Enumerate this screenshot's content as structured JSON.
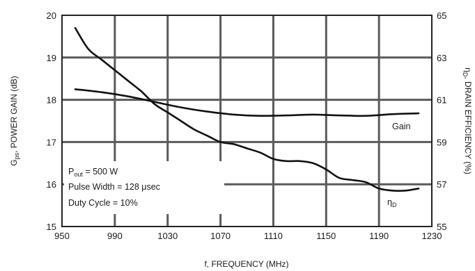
{
  "chart_data": {
    "type": "line",
    "xlabel": "f, FREQUENCY (MHz)",
    "ylabel_left": "Gps, POWER GAIN (dB)",
    "ylabel_left_main": "G",
    "ylabel_left_sub": "ps",
    "ylabel_left_rest": ", POWER GAIN (dB)",
    "ylabel_right": "ηD, DRAIN EFFICIENCY (%)",
    "ylabel_right_main": "η",
    "ylabel_right_sub": "D",
    "ylabel_right_rest": ", DRAIN EFFICIENCY (%)",
    "xlim": [
      950,
      1230
    ],
    "ylim_left": [
      15,
      20
    ],
    "ylim_right": [
      55,
      65
    ],
    "x_ticks": [
      "950",
      "990",
      "1030",
      "1070",
      "1110",
      "1150",
      "1190",
      "1230"
    ],
    "y_ticks_left": [
      "15",
      "16",
      "17",
      "18",
      "19",
      "20"
    ],
    "y_ticks_right": [
      "55",
      "57",
      "59",
      "61",
      "63",
      "65"
    ],
    "grid": true,
    "annotations": {
      "line1_main": "P",
      "line1_sub": "out",
      "line1_rest": " = 500 W",
      "line2": "Pulse Width = 128 μsec",
      "line3": "Duty Cycle = 10%"
    },
    "series": [
      {
        "name": "Gain",
        "axis": "left",
        "x": [
          960,
          980,
          1000,
          1020,
          1040,
          1060,
          1080,
          1100,
          1120,
          1140,
          1160,
          1180,
          1200,
          1220
        ],
        "values": [
          18.25,
          18.18,
          18.08,
          17.95,
          17.82,
          17.72,
          17.65,
          17.62,
          17.63,
          17.65,
          17.63,
          17.62,
          17.66,
          17.68
        ]
      },
      {
        "name": "ηD",
        "label_main": "η",
        "label_sub": "D",
        "axis": "right",
        "x": [
          960,
          970,
          980,
          990,
          1000,
          1010,
          1020,
          1030,
          1040,
          1050,
          1060,
          1070,
          1080,
          1090,
          1100,
          1110,
          1120,
          1130,
          1140,
          1150,
          1160,
          1170,
          1180,
          1190,
          1200,
          1210,
          1220
        ],
        "values": [
          64.4,
          63.4,
          62.9,
          62.4,
          61.9,
          61.4,
          60.8,
          60.4,
          60.0,
          59.6,
          59.3,
          59.0,
          58.9,
          58.7,
          58.5,
          58.2,
          58.1,
          58.1,
          58.0,
          57.7,
          57.3,
          57.2,
          57.1,
          56.8,
          56.7,
          56.7,
          56.8
        ]
      }
    ]
  }
}
